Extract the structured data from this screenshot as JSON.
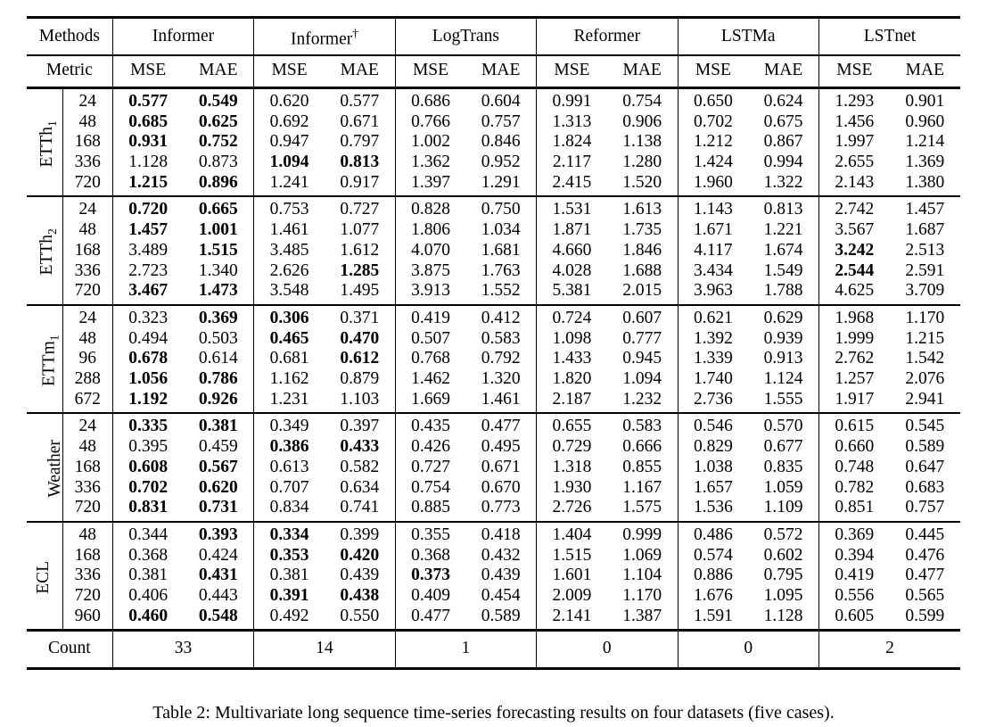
{
  "table": {
    "methods_header_label": "Methods",
    "metric_header_label": "Metric",
    "methods": [
      {
        "name": "Informer",
        "sup": ""
      },
      {
        "name": "Informer",
        "sup": "†"
      },
      {
        "name": "LogTrans",
        "sup": ""
      },
      {
        "name": "Reformer",
        "sup": ""
      },
      {
        "name": "LSTMa",
        "sup": ""
      },
      {
        "name": "LSTnet",
        "sup": ""
      }
    ],
    "metrics": [
      "MSE",
      "MAE"
    ],
    "groups": [
      {
        "dataset": "ETTh",
        "dataset_sub": "1",
        "rows": [
          {
            "horizon": "24",
            "values": [
              "0.577",
              "0.549",
              "0.620",
              "0.577",
              "0.686",
              "0.604",
              "0.991",
              "0.754",
              "0.650",
              "0.624",
              "1.293",
              "0.901"
            ],
            "bold": [
              0,
              1
            ]
          },
          {
            "horizon": "48",
            "values": [
              "0.685",
              "0.625",
              "0.692",
              "0.671",
              "0.766",
              "0.757",
              "1.313",
              "0.906",
              "0.702",
              "0.675",
              "1.456",
              "0.960"
            ],
            "bold": [
              0,
              1
            ]
          },
          {
            "horizon": "168",
            "values": [
              "0.931",
              "0.752",
              "0.947",
              "0.797",
              "1.002",
              "0.846",
              "1.824",
              "1.138",
              "1.212",
              "0.867",
              "1.997",
              "1.214"
            ],
            "bold": [
              0,
              1
            ]
          },
          {
            "horizon": "336",
            "values": [
              "1.128",
              "0.873",
              "1.094",
              "0.813",
              "1.362",
              "0.952",
              "2.117",
              "1.280",
              "1.424",
              "0.994",
              "2.655",
              "1.369"
            ],
            "bold": [
              2,
              3
            ]
          },
          {
            "horizon": "720",
            "values": [
              "1.215",
              "0.896",
              "1.241",
              "0.917",
              "1.397",
              "1.291",
              "2.415",
              "1.520",
              "1.960",
              "1.322",
              "2.143",
              "1.380"
            ],
            "bold": [
              0,
              1
            ]
          }
        ]
      },
      {
        "dataset": "ETTh",
        "dataset_sub": "2",
        "rows": [
          {
            "horizon": "24",
            "values": [
              "0.720",
              "0.665",
              "0.753",
              "0.727",
              "0.828",
              "0.750",
              "1.531",
              "1.613",
              "1.143",
              "0.813",
              "2.742",
              "1.457"
            ],
            "bold": [
              0,
              1
            ]
          },
          {
            "horizon": "48",
            "values": [
              "1.457",
              "1.001",
              "1.461",
              "1.077",
              "1.806",
              "1.034",
              "1.871",
              "1.735",
              "1.671",
              "1.221",
              "3.567",
              "1.687"
            ],
            "bold": [
              0,
              1
            ]
          },
          {
            "horizon": "168",
            "values": [
              "3.489",
              "1.515",
              "3.485",
              "1.612",
              "4.070",
              "1.681",
              "4.660",
              "1.846",
              "4.117",
              "1.674",
              "3.242",
              "2.513"
            ],
            "bold": [
              1,
              10
            ]
          },
          {
            "horizon": "336",
            "values": [
              "2.723",
              "1.340",
              "2.626",
              "1.285",
              "3.875",
              "1.763",
              "4.028",
              "1.688",
              "3.434",
              "1.549",
              "2.544",
              "2.591"
            ],
            "bold": [
              3,
              10
            ]
          },
          {
            "horizon": "720",
            "values": [
              "3.467",
              "1.473",
              "3.548",
              "1.495",
              "3.913",
              "1.552",
              "5.381",
              "2.015",
              "3.963",
              "1.788",
              "4.625",
              "3.709"
            ],
            "bold": [
              0,
              1
            ]
          }
        ]
      },
      {
        "dataset": "ETTm",
        "dataset_sub": "1",
        "rows": [
          {
            "horizon": "24",
            "values": [
              "0.323",
              "0.369",
              "0.306",
              "0.371",
              "0.419",
              "0.412",
              "0.724",
              "0.607",
              "0.621",
              "0.629",
              "1.968",
              "1.170"
            ],
            "bold": [
              1,
              2
            ]
          },
          {
            "horizon": "48",
            "values": [
              "0.494",
              "0.503",
              "0.465",
              "0.470",
              "0.507",
              "0.583",
              "1.098",
              "0.777",
              "1.392",
              "0.939",
              "1.999",
              "1.215"
            ],
            "bold": [
              2,
              3
            ]
          },
          {
            "horizon": "96",
            "values": [
              "0.678",
              "0.614",
              "0.681",
              "0.612",
              "0.768",
              "0.792",
              "1.433",
              "0.945",
              "1.339",
              "0.913",
              "2.762",
              "1.542"
            ],
            "bold": [
              0,
              3
            ]
          },
          {
            "horizon": "288",
            "values": [
              "1.056",
              "0.786",
              "1.162",
              "0.879",
              "1.462",
              "1.320",
              "1.820",
              "1.094",
              "1.740",
              "1.124",
              "1.257",
              "2.076"
            ],
            "bold": [
              0,
              1
            ]
          },
          {
            "horizon": "672",
            "values": [
              "1.192",
              "0.926",
              "1.231",
              "1.103",
              "1.669",
              "1.461",
              "2.187",
              "1.232",
              "2.736",
              "1.555",
              "1.917",
              "2.941"
            ],
            "bold": [
              0,
              1
            ]
          }
        ]
      },
      {
        "dataset": "Weather",
        "dataset_sub": "",
        "rows": [
          {
            "horizon": "24",
            "values": [
              "0.335",
              "0.381",
              "0.349",
              "0.397",
              "0.435",
              "0.477",
              "0.655",
              "0.583",
              "0.546",
              "0.570",
              "0.615",
              "0.545"
            ],
            "bold": [
              0,
              1
            ]
          },
          {
            "horizon": "48",
            "values": [
              "0.395",
              "0.459",
              "0.386",
              "0.433",
              "0.426",
              "0.495",
              "0.729",
              "0.666",
              "0.829",
              "0.677",
              "0.660",
              "0.589"
            ],
            "bold": [
              2,
              3
            ]
          },
          {
            "horizon": "168",
            "values": [
              "0.608",
              "0.567",
              "0.613",
              "0.582",
              "0.727",
              "0.671",
              "1.318",
              "0.855",
              "1.038",
              "0.835",
              "0.748",
              "0.647"
            ],
            "bold": [
              0,
              1
            ]
          },
          {
            "horizon": "336",
            "values": [
              "0.702",
              "0.620",
              "0.707",
              "0.634",
              "0.754",
              "0.670",
              "1.930",
              "1.167",
              "1.657",
              "1.059",
              "0.782",
              "0.683"
            ],
            "bold": [
              0,
              1
            ]
          },
          {
            "horizon": "720",
            "values": [
              "0.831",
              "0.731",
              "0.834",
              "0.741",
              "0.885",
              "0.773",
              "2.726",
              "1.575",
              "1.536",
              "1.109",
              "0.851",
              "0.757"
            ],
            "bold": [
              0,
              1
            ]
          }
        ]
      },
      {
        "dataset": "ECL",
        "dataset_sub": "",
        "rows": [
          {
            "horizon": "48",
            "values": [
              "0.344",
              "0.393",
              "0.334",
              "0.399",
              "0.355",
              "0.418",
              "1.404",
              "0.999",
              "0.486",
              "0.572",
              "0.369",
              "0.445"
            ],
            "bold": [
              1,
              2
            ]
          },
          {
            "horizon": "168",
            "values": [
              "0.368",
              "0.424",
              "0.353",
              "0.420",
              "0.368",
              "0.432",
              "1.515",
              "1.069",
              "0.574",
              "0.602",
              "0.394",
              "0.476"
            ],
            "bold": [
              2,
              3
            ]
          },
          {
            "horizon": "336",
            "values": [
              "0.381",
              "0.431",
              "0.381",
              "0.439",
              "0.373",
              "0.439",
              "1.601",
              "1.104",
              "0.886",
              "0.795",
              "0.419",
              "0.477"
            ],
            "bold": [
              1,
              4
            ]
          },
          {
            "horizon": "720",
            "values": [
              "0.406",
              "0.443",
              "0.391",
              "0.438",
              "0.409",
              "0.454",
              "2.009",
              "1.170",
              "1.676",
              "1.095",
              "0.556",
              "0.565"
            ],
            "bold": [
              2,
              3
            ]
          },
          {
            "horizon": "960",
            "values": [
              "0.460",
              "0.548",
              "0.492",
              "0.550",
              "0.477",
              "0.589",
              "2.141",
              "1.387",
              "1.591",
              "1.128",
              "0.605",
              "0.599"
            ],
            "bold": [
              0,
              1
            ]
          }
        ]
      }
    ],
    "count_label": "Count",
    "counts": [
      "33",
      "14",
      "1",
      "0",
      "0",
      "2"
    ]
  },
  "caption": "Table 2: Multivariate long sequence time-series forecasting results on four datasets (five cases)."
}
